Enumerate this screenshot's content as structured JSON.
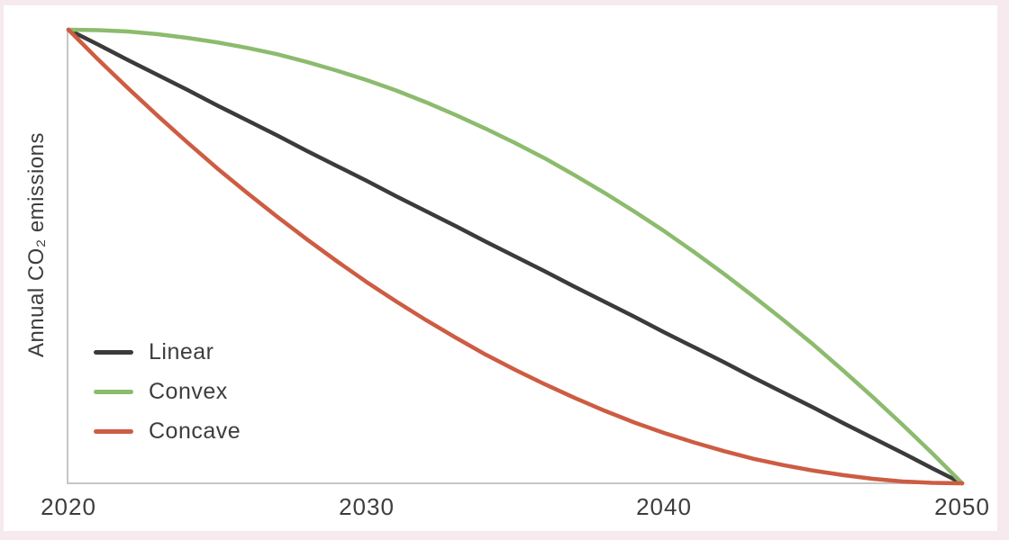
{
  "colors": {
    "page_background": "#f6eaef",
    "panel_background": "#ffffff",
    "axis": "#c6c6c6",
    "text": "#3d3d3d"
  },
  "chart_data": {
    "type": "line",
    "title": "",
    "xlabel": "",
    "ylabel": "Annual CO₂ emissions",
    "x_ticks": [
      "2020",
      "2030",
      "2040",
      "2050"
    ],
    "x_range": [
      2020,
      2050
    ],
    "y_range_normalized": [
      0,
      1
    ],
    "grid": false,
    "legend_position": "inside-lower-left",
    "x": [
      2020,
      2021,
      2022,
      2023,
      2024,
      2025,
      2026,
      2027,
      2028,
      2029,
      2030,
      2031,
      2032,
      2033,
      2034,
      2035,
      2036,
      2037,
      2038,
      2039,
      2040,
      2041,
      2042,
      2043,
      2044,
      2045,
      2046,
      2047,
      2048,
      2049,
      2050
    ],
    "series": [
      {
        "name": "Linear",
        "shape": "linear",
        "color": "#3b3b3b",
        "values": [
          1.0,
          0.967,
          0.933,
          0.9,
          0.867,
          0.833,
          0.8,
          0.767,
          0.733,
          0.7,
          0.667,
          0.633,
          0.6,
          0.567,
          0.533,
          0.5,
          0.467,
          0.433,
          0.4,
          0.367,
          0.333,
          0.3,
          0.267,
          0.233,
          0.2,
          0.167,
          0.133,
          0.1,
          0.067,
          0.033,
          0.0
        ]
      },
      {
        "name": "Convex",
        "shape": "convex",
        "color": "#8cbb6d",
        "values": [
          1.0,
          0.999,
          0.996,
          0.99,
          0.982,
          0.972,
          0.96,
          0.946,
          0.929,
          0.91,
          0.889,
          0.866,
          0.84,
          0.812,
          0.782,
          0.75,
          0.716,
          0.679,
          0.64,
          0.599,
          0.556,
          0.51,
          0.462,
          0.412,
          0.36,
          0.306,
          0.249,
          0.19,
          0.129,
          0.066,
          0.0
        ]
      },
      {
        "name": "Concave",
        "shape": "concave",
        "color": "#cd5c43",
        "values": [
          1.0,
          0.934,
          0.871,
          0.81,
          0.751,
          0.694,
          0.64,
          0.588,
          0.538,
          0.49,
          0.444,
          0.401,
          0.36,
          0.321,
          0.284,
          0.25,
          0.218,
          0.188,
          0.16,
          0.134,
          0.111,
          0.09,
          0.071,
          0.054,
          0.04,
          0.028,
          0.018,
          0.01,
          0.004,
          0.001,
          0.0
        ]
      }
    ]
  }
}
